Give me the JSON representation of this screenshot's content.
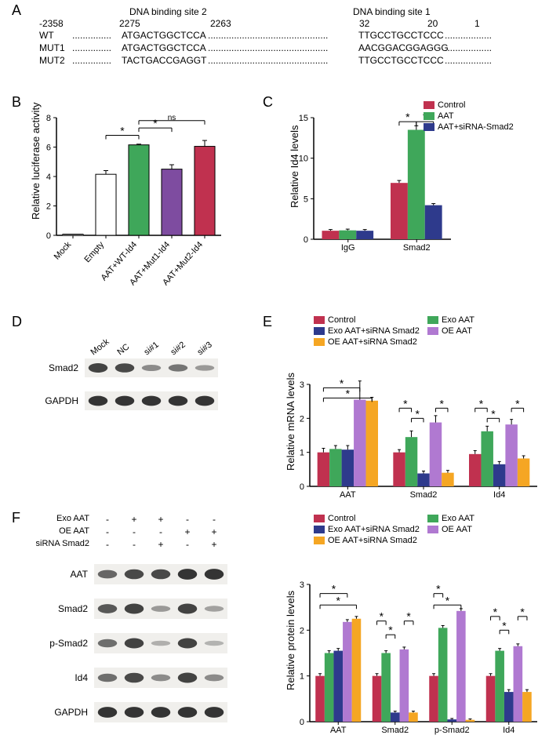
{
  "panelA": {
    "site2_label": "DNA binding site 2",
    "site1_label": "DNA binding site 1",
    "positions": [
      "-2358",
      "2275",
      "2263",
      "32",
      "20",
      "1"
    ],
    "rows": [
      {
        "label": "WT",
        "seq2": "ATGACTGGCTCCA",
        "seq1": "TTGCCTGCCTCCC"
      },
      {
        "label": "MUT1",
        "seq2": "ATGACTGGCTCCA",
        "seq1": "AACGGACGGAGGG"
      },
      {
        "label": "MUT2",
        "seq2": "TACTGACCGAGGT",
        "seq1": "TTGCCTGCCTCCC"
      }
    ]
  },
  "panelB": {
    "y_title": "Relative luciferase activity",
    "ylim": [
      0,
      8
    ],
    "ytick_step": 2,
    "categories": [
      "Mock",
      "Empty",
      "AAT+WT-Id4",
      "AAT+Mut1-Id4",
      "AAT+Mut2-Id4"
    ],
    "values": [
      0.08,
      4.15,
      6.15,
      4.5,
      6.05
    ],
    "errors": [
      0.0,
      0.25,
      0.05,
      0.3,
      0.4
    ],
    "colors": [
      "#ffffff",
      "#ffffff",
      "#3fa75a",
      "#7e4ca0",
      "#c0314f"
    ],
    "sig": [
      {
        "from": 1,
        "to": 2,
        "y": 6.8,
        "label": "*"
      },
      {
        "from": 2,
        "to": 3,
        "y": 7.3,
        "label": "*"
      },
      {
        "from": 2,
        "to": 4,
        "y": 7.8,
        "label": "ns"
      }
    ],
    "bar_width": 0.62,
    "border": "#000000"
  },
  "panelC": {
    "y_title": "Relative Id4 levels",
    "ylim": [
      0,
      15
    ],
    "ytick_step": 5,
    "groups": [
      "IgG",
      "Smad2"
    ],
    "series": [
      {
        "name": "Control",
        "color": "#c0314f",
        "values": [
          1.05,
          6.95
        ],
        "errors": [
          0.15,
          0.3
        ]
      },
      {
        "name": "AAT",
        "color": "#3fa75a",
        "values": [
          1.1,
          13.5
        ],
        "errors": [
          0.15,
          0.5
        ]
      },
      {
        "name": "AAT+siRNA-Smad2",
        "color": "#2e3a8c",
        "values": [
          1.05,
          4.2
        ],
        "errors": [
          0.15,
          0.2
        ]
      }
    ],
    "sig": [
      {
        "group": 1,
        "from": 0,
        "to": 1,
        "y": 14.5,
        "label": "*"
      },
      {
        "group": 1,
        "from": 1,
        "to": 2,
        "y": 14.5,
        "label": "*"
      }
    ],
    "bar_width": 0.25
  },
  "panelD": {
    "lanes": [
      "Mock",
      "NC",
      "si#1",
      "si#2",
      "si#3"
    ],
    "rows": [
      {
        "label": "Smad2",
        "intensities": [
          0.85,
          0.8,
          0.35,
          0.5,
          0.25
        ]
      },
      {
        "label": "GAPDH",
        "intensities": [
          0.95,
          0.95,
          0.95,
          0.95,
          0.95
        ]
      }
    ],
    "band_color": "#2c2c2c",
    "lane_width": 34
  },
  "panelE_mrna": {
    "y_title": "Relative mRNA levels",
    "ylim": [
      0,
      3
    ],
    "ytick_step": 1,
    "groups": [
      "AAT",
      "Smad2",
      "Id4"
    ],
    "series": [
      {
        "name": "Control",
        "color": "#c0314f"
      },
      {
        "name": "Exo AAT",
        "color": "#3fa75a"
      },
      {
        "name": "Exo AAT+siRNA Smad2",
        "color": "#2e3a8c"
      },
      {
        "name": "OE AAT",
        "color": "#b079d1"
      },
      {
        "name": "OE AAT+siRNA Smad2",
        "color": "#f5a623"
      }
    ],
    "values": [
      [
        1.0,
        1.1,
        1.08,
        2.55,
        2.52
      ],
      [
        1.0,
        1.45,
        0.38,
        1.88,
        0.4
      ],
      [
        0.95,
        1.62,
        0.65,
        1.82,
        0.82
      ]
    ],
    "errors": [
      [
        0.12,
        0.1,
        0.12,
        0.55,
        0.1
      ],
      [
        0.08,
        0.18,
        0.07,
        0.2,
        0.07
      ],
      [
        0.1,
        0.15,
        0.08,
        0.15,
        0.08
      ]
    ],
    "sig_rows": [
      [
        {
          "from": 0,
          "to": 3,
          "y": 2.9,
          "label": "*"
        },
        {
          "from": 0,
          "to": 4,
          "y": 2.6,
          "label": "*"
        }
      ],
      [
        {
          "from": 0,
          "to": 1,
          "y": 2.3,
          "label": "*"
        },
        {
          "from": 1,
          "to": 2,
          "y": 2.0,
          "label": "*"
        },
        {
          "from": 3,
          "to": 4,
          "y": 2.3,
          "label": "*"
        }
      ],
      [
        {
          "from": 0,
          "to": 1,
          "y": 2.3,
          "label": "*"
        },
        {
          "from": 1,
          "to": 2,
          "y": 2.0,
          "label": "*"
        },
        {
          "from": 3,
          "to": 4,
          "y": 2.3,
          "label": "*"
        }
      ]
    ]
  },
  "panelF_treatments": {
    "rows": [
      "Exo AAT",
      "OE AAT",
      "siRNA Smad2"
    ],
    "matrix": [
      [
        "-",
        "+",
        "+",
        "-",
        "-"
      ],
      [
        "-",
        "-",
        "-",
        "+",
        "+"
      ],
      [
        "-",
        "-",
        "+",
        "-",
        "+"
      ]
    ]
  },
  "panelF_blot": {
    "rows": [
      {
        "label": "AAT",
        "intensities": [
          0.6,
          0.8,
          0.8,
          0.95,
          0.95
        ]
      },
      {
        "label": "Smad2",
        "intensities": [
          0.7,
          0.85,
          0.25,
          0.85,
          0.2
        ]
      },
      {
        "label": "p-Smad2",
        "intensities": [
          0.55,
          0.85,
          0.1,
          0.85,
          0.08
        ]
      },
      {
        "label": "Id4",
        "intensities": [
          0.55,
          0.8,
          0.35,
          0.85,
          0.35
        ]
      },
      {
        "label": "GAPDH",
        "intensities": [
          0.95,
          0.95,
          0.95,
          0.95,
          0.95
        ]
      }
    ],
    "band_color": "#2c2c2c",
    "lane_width": 34
  },
  "panelF_protein": {
    "y_title": "Relative protein levels",
    "ylim": [
      0,
      3
    ],
    "ytick_step": 1,
    "groups": [
      "AAT",
      "Smad2",
      "p-Smad2",
      "Id4"
    ],
    "series_colors": [
      "#c0314f",
      "#3fa75a",
      "#2e3a8c",
      "#b079d1",
      "#f5a623"
    ],
    "series_names": [
      "Control",
      "Exo AAT",
      "Exo AAT+siRNA Smad2",
      "OE AAT",
      "OE AAT+siRNA Smad2"
    ],
    "values": [
      [
        1.0,
        1.5,
        1.55,
        2.18,
        2.25
      ],
      [
        1.0,
        1.5,
        0.2,
        1.58,
        0.2
      ],
      [
        1.0,
        2.05,
        0.05,
        2.42,
        0.04
      ],
      [
        1.0,
        1.55,
        0.65,
        1.65,
        0.65
      ]
    ],
    "errors": [
      [
        0.05,
        0.05,
        0.05,
        0.05,
        0.05
      ],
      [
        0.05,
        0.05,
        0.03,
        0.05,
        0.03
      ],
      [
        0.05,
        0.05,
        0.02,
        0.05,
        0.02
      ],
      [
        0.05,
        0.05,
        0.05,
        0.05,
        0.05
      ]
    ],
    "sig_rows": [
      [
        {
          "from": 0,
          "to": 3,
          "y": 2.8,
          "label": "*"
        },
        {
          "from": 0,
          "to": 4,
          "y": 2.55,
          "label": "*"
        }
      ],
      [
        {
          "from": 0,
          "to": 1,
          "y": 2.2,
          "label": "*"
        },
        {
          "from": 1,
          "to": 2,
          "y": 1.9,
          "label": "*"
        },
        {
          "from": 3,
          "to": 4,
          "y": 2.2,
          "label": "*"
        }
      ],
      [
        {
          "from": 0,
          "to": 1,
          "y": 2.8,
          "label": "*"
        },
        {
          "from": 0,
          "to": 3,
          "y": 2.55,
          "label": "*"
        }
      ],
      [
        {
          "from": 0,
          "to": 1,
          "y": 2.3,
          "label": "*"
        },
        {
          "from": 1,
          "to": 2,
          "y": 2.0,
          "label": "*"
        },
        {
          "from": 3,
          "to": 4,
          "y": 2.3,
          "label": "*"
        }
      ]
    ]
  }
}
